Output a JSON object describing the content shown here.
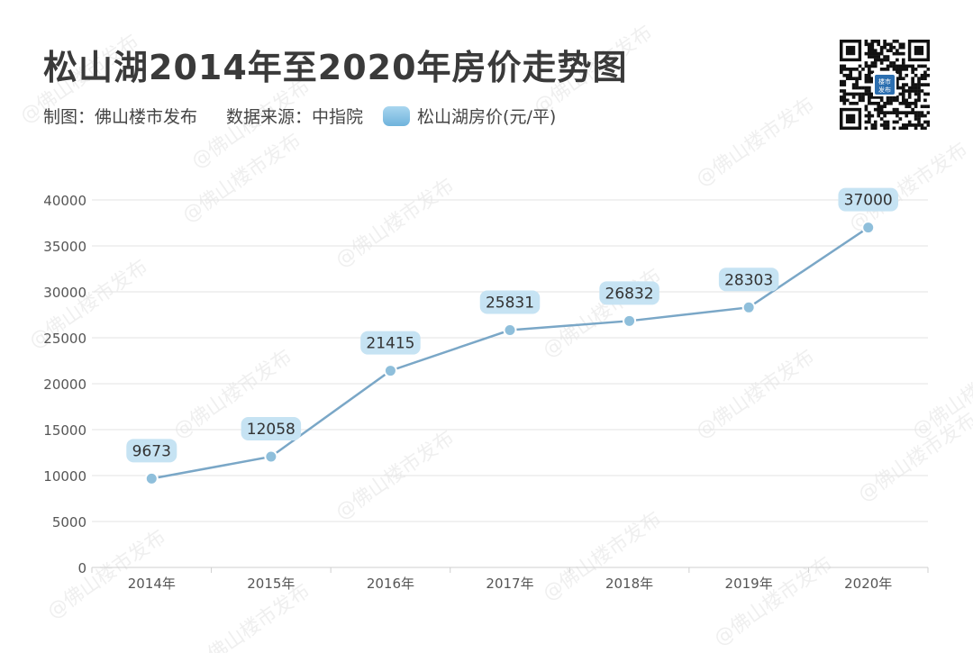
{
  "header": {
    "title": "松山湖2014年至2020年房价走势图",
    "maker": "制图：佛山楼市发布",
    "source": "数据来源：中指院",
    "legend_label": "松山湖房价(元/平)"
  },
  "qr": {
    "badge_line1": "楼市",
    "badge_line2": "发布"
  },
  "watermark_text": "@佛山楼市发布",
  "colors": {
    "line": "#7aa7c7",
    "marker": "#8fbfdb",
    "label_bg": "#c6e3f3",
    "grid": "#e3e3e3",
    "axis": "#cfcfcf"
  },
  "chart_data": {
    "type": "line",
    "title": "松山湖2014年至2020年房价走势图",
    "xlabel": "",
    "ylabel": "",
    "categories": [
      "2014年",
      "2015年",
      "2016年",
      "2017年",
      "2018年",
      "2019年",
      "2020年"
    ],
    "series": [
      {
        "name": "松山湖房价(元/平)",
        "values": [
          9673,
          12058,
          21415,
          25831,
          26832,
          28303,
          37000
        ]
      }
    ],
    "ylim": [
      0,
      40000
    ],
    "yticks": [
      0,
      5000,
      10000,
      15000,
      20000,
      25000,
      30000,
      35000,
      40000
    ],
    "grid": true,
    "legend": "top-left"
  }
}
